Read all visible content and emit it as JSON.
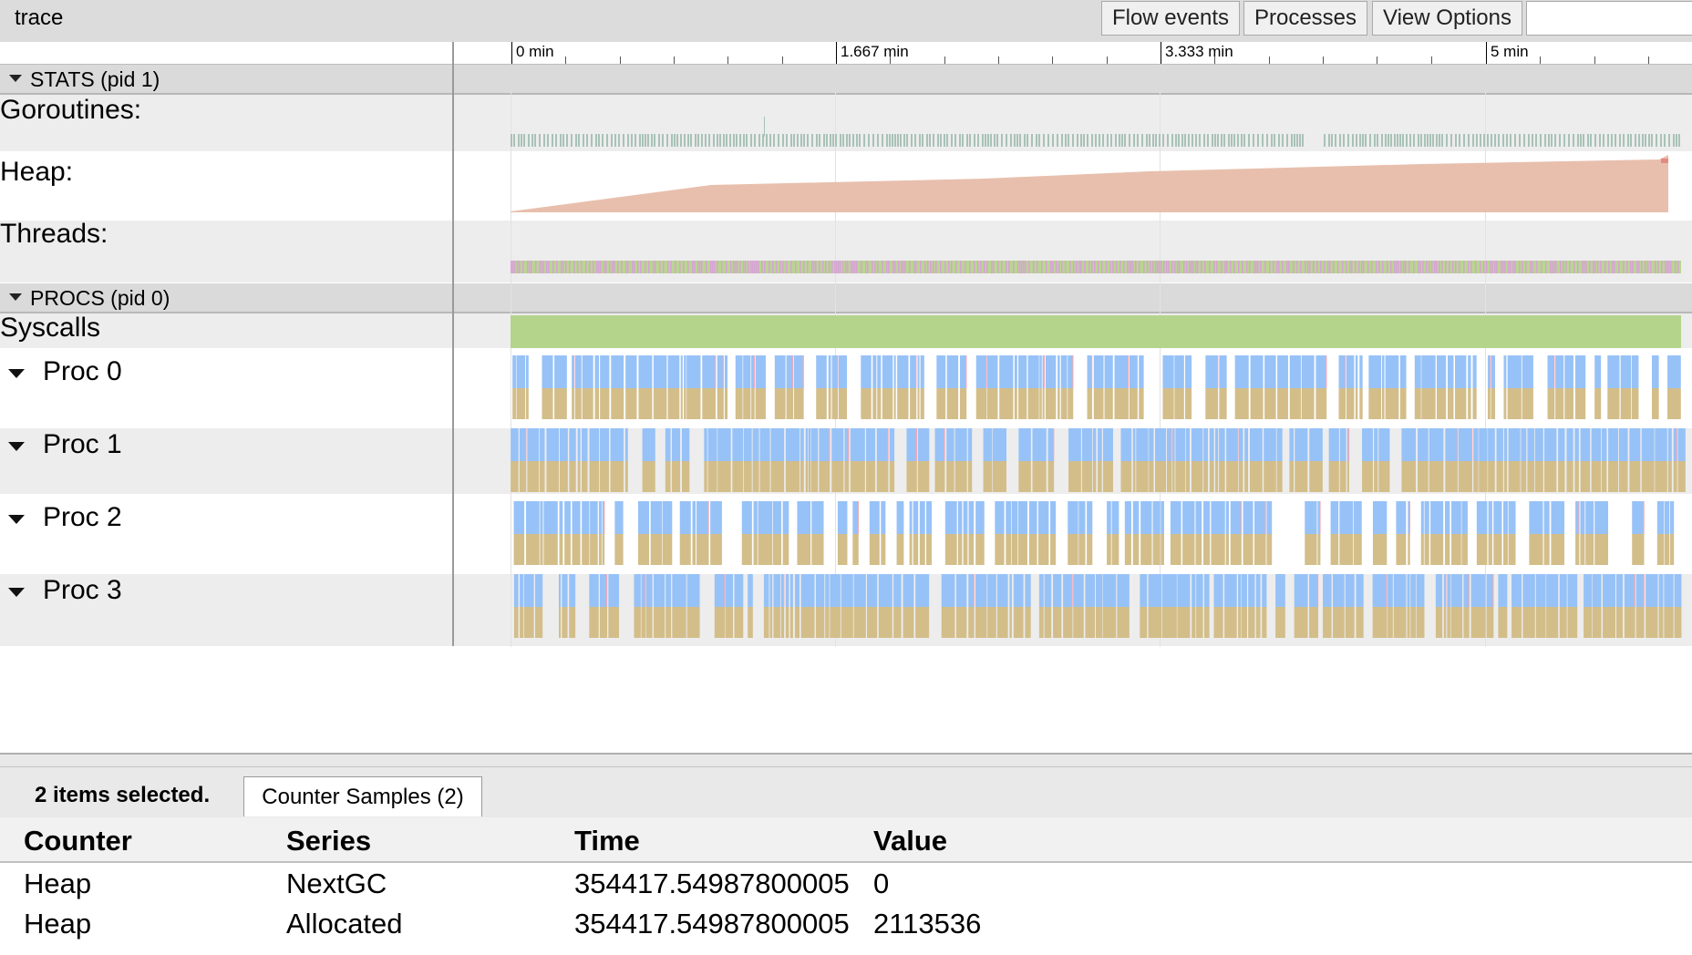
{
  "header": {
    "title": "trace"
  },
  "toolbar": {
    "flow_events": "Flow events",
    "processes": "Processes",
    "view_options": "View Options",
    "search_value": ""
  },
  "ruler": {
    "ticks": [
      "0 min",
      "1.667 min",
      "3.333 min",
      "5 min"
    ]
  },
  "stats_process": {
    "label": "STATS (pid 1)",
    "tracks": [
      "Goroutines:",
      "Heap:",
      "Threads:"
    ]
  },
  "procs_process": {
    "label": "PROCS (pid 0)",
    "syscalls": "Syscalls",
    "procs": [
      "Proc 0",
      "Proc 1",
      "Proc 2",
      "Proc 3"
    ]
  },
  "colors": {
    "syscalls": "#b5d48b",
    "running": "#97c2f7",
    "runnable": "#d3be8a",
    "gc_mark": "#f2a8b4",
    "heap": "#e8bfad",
    "goroutines": "#a9c2b8",
    "threads": "#d8a3d8",
    "thread_base": "#b9d68f"
  },
  "analysis": {
    "selection_text": "2 items selected.",
    "tab_label": "Counter Samples (2)",
    "columns": [
      "Counter",
      "Series",
      "Time",
      "Value"
    ],
    "rows": [
      {
        "counter": "Heap",
        "series": "NextGC",
        "time": "354417.54987800005",
        "value": "0"
      },
      {
        "counter": "Heap",
        "series": "Allocated",
        "time": "354417.54987800005",
        "value": "2113536"
      }
    ]
  }
}
